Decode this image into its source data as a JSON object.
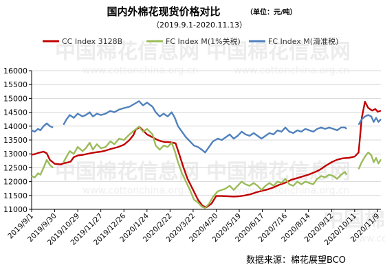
{
  "chart_data": {
    "type": "line",
    "title": "国内外棉花现货价格对比",
    "unit_note": "（单位：元/吨）",
    "subtitle": "（2019.9.1-2020.11.13）",
    "source": "数据来源：棉花展望BCO",
    "watermark": "中国棉花信息网",
    "watermark_url": "www.cottonchina.org.cn",
    "legend_position": "top",
    "grid": true,
    "xlabel": "",
    "ylabel": "",
    "x_range": [
      "2019-09-01",
      "2020-11-13"
    ],
    "ylim": [
      11000,
      16000
    ],
    "y_ticks": [
      11000,
      11500,
      12000,
      12500,
      13000,
      13500,
      14000,
      14500,
      15000,
      15500,
      16000
    ],
    "x_ticks": [
      "2019/9/1",
      "2019/9/30",
      "2019/10/29",
      "2019/11/27",
      "2019/12/26",
      "2020/1/24",
      "2020/2/22",
      "2020/3/22",
      "2020/4/20",
      "2020/5/19",
      "2020/6/17",
      "2020/7/16",
      "2020/8/14",
      "2020/9/12",
      "2020/10/11",
      "2020/11/9"
    ],
    "series": [
      {
        "name": "CC Index 3128B",
        "color": "#c00000",
        "points": [
          [
            "2019-09-01",
            12970
          ],
          [
            "2019-09-05",
            12990
          ],
          [
            "2019-09-10",
            13040
          ],
          [
            "2019-09-16",
            13080
          ],
          [
            "2019-09-20",
            13020
          ],
          [
            "2019-09-24",
            12780
          ],
          [
            "2019-09-30",
            12640
          ],
          [
            "2019-10-08",
            12620
          ],
          [
            "2019-10-10",
            12650
          ],
          [
            "2019-10-15",
            12680
          ],
          [
            "2019-10-20",
            12720
          ],
          [
            "2019-10-24",
            12880
          ],
          [
            "2019-10-29",
            12940
          ],
          [
            "2019-11-05",
            12970
          ],
          [
            "2019-11-12",
            13010
          ],
          [
            "2019-11-19",
            13050
          ],
          [
            "2019-11-27",
            13080
          ],
          [
            "2019-12-03",
            13120
          ],
          [
            "2019-12-10",
            13180
          ],
          [
            "2019-12-18",
            13240
          ],
          [
            "2019-12-26",
            13330
          ],
          [
            "2020-01-02",
            13500
          ],
          [
            "2020-01-07",
            13680
          ],
          [
            "2020-01-10",
            13880
          ],
          [
            "2020-01-15",
            13960
          ],
          [
            "2020-01-20",
            13820
          ],
          [
            "2020-01-24",
            13700
          ],
          [
            "2020-01-31",
            13600
          ],
          [
            "2020-02-05",
            13520
          ],
          [
            "2020-02-10",
            13460
          ],
          [
            "2020-02-15",
            13430
          ],
          [
            "2020-02-22",
            13420
          ],
          [
            "2020-02-29",
            13380
          ],
          [
            "2020-03-05",
            12950
          ],
          [
            "2020-03-10",
            12500
          ],
          [
            "2020-03-15",
            12100
          ],
          [
            "2020-03-22",
            11700
          ],
          [
            "2020-03-28",
            11350
          ],
          [
            "2020-04-03",
            11120
          ],
          [
            "2020-04-08",
            11080
          ],
          [
            "2020-04-14",
            11200
          ],
          [
            "2020-04-20",
            11480
          ],
          [
            "2020-04-27",
            11480
          ],
          [
            "2020-05-05",
            11470
          ],
          [
            "2020-05-12",
            11460
          ],
          [
            "2020-05-19",
            11470
          ],
          [
            "2020-05-26",
            11500
          ],
          [
            "2020-06-03",
            11550
          ],
          [
            "2020-06-10",
            11620
          ],
          [
            "2020-06-17",
            11670
          ],
          [
            "2020-06-24",
            11720
          ],
          [
            "2020-07-01",
            11790
          ],
          [
            "2020-07-08",
            11880
          ],
          [
            "2020-07-16",
            11960
          ],
          [
            "2020-07-23",
            12060
          ],
          [
            "2020-07-30",
            12120
          ],
          [
            "2020-08-06",
            12180
          ],
          [
            "2020-08-14",
            12250
          ],
          [
            "2020-08-21",
            12330
          ],
          [
            "2020-08-28",
            12420
          ],
          [
            "2020-09-04",
            12560
          ],
          [
            "2020-09-12",
            12700
          ],
          [
            "2020-09-19",
            12790
          ],
          [
            "2020-09-26",
            12840
          ],
          [
            "2020-10-04",
            12860
          ],
          [
            "2020-10-11",
            12900
          ],
          [
            "2020-10-16",
            13050
          ],
          [
            "2020-10-20",
            14300
          ],
          [
            "2020-10-24",
            14880
          ],
          [
            "2020-10-28",
            14660
          ],
          [
            "2020-11-02",
            14560
          ],
          [
            "2020-11-06",
            14620
          ],
          [
            "2020-11-09",
            14520
          ],
          [
            "2020-11-13",
            14560
          ]
        ]
      },
      {
        "name": "FC Index M(1%关税)",
        "color": "#9bbb59",
        "points": [
          [
            "2019-09-01",
            12200
          ],
          [
            "2019-09-05",
            12150
          ],
          [
            "2019-09-09",
            12300
          ],
          [
            "2019-09-12",
            12250
          ],
          [
            "2019-09-16",
            12500
          ],
          [
            "2019-09-20",
            12780
          ],
          [
            "2019-09-24",
            12600
          ],
          [
            "2019-09-28",
            12500
          ],
          [
            "2019-10-11",
            12700
          ],
          [
            "2019-10-15",
            12900
          ],
          [
            "2019-10-19",
            13100
          ],
          [
            "2019-10-24",
            13000
          ],
          [
            "2019-10-29",
            13250
          ],
          [
            "2019-11-04",
            13100
          ],
          [
            "2019-11-08",
            13200
          ],
          [
            "2019-11-13",
            13400
          ],
          [
            "2019-11-17",
            13150
          ],
          [
            "2019-11-22",
            13350
          ],
          [
            "2019-11-27",
            13200
          ],
          [
            "2019-12-03",
            13250
          ],
          [
            "2019-12-09",
            13450
          ],
          [
            "2019-12-14",
            13350
          ],
          [
            "2019-12-20",
            13550
          ],
          [
            "2019-12-26",
            13500
          ],
          [
            "2020-01-02",
            13700
          ],
          [
            "2020-01-08",
            13850
          ],
          [
            "2020-01-14",
            13980
          ],
          [
            "2020-01-19",
            13800
          ],
          [
            "2020-01-24",
            13900
          ],
          [
            "2020-01-31",
            13700
          ],
          [
            "2020-02-04",
            13300
          ],
          [
            "2020-02-09",
            13150
          ],
          [
            "2020-02-14",
            13300
          ],
          [
            "2020-02-19",
            13250
          ],
          [
            "2020-02-24",
            13400
          ],
          [
            "2020-02-28",
            13100
          ],
          [
            "2020-03-03",
            12700
          ],
          [
            "2020-03-08",
            12300
          ],
          [
            "2020-03-13",
            12000
          ],
          [
            "2020-03-18",
            11700
          ],
          [
            "2020-03-23",
            11350
          ],
          [
            "2020-03-28",
            11250
          ],
          [
            "2020-04-02",
            11100
          ],
          [
            "2020-04-06",
            11050
          ],
          [
            "2020-04-11",
            11200
          ],
          [
            "2020-04-16",
            11450
          ],
          [
            "2020-04-22",
            11650
          ],
          [
            "2020-04-27",
            11700
          ],
          [
            "2020-05-02",
            11750
          ],
          [
            "2020-05-07",
            11850
          ],
          [
            "2020-05-12",
            11700
          ],
          [
            "2020-05-17",
            11850
          ],
          [
            "2020-05-22",
            12000
          ],
          [
            "2020-05-27",
            11900
          ],
          [
            "2020-06-01",
            11850
          ],
          [
            "2020-06-06",
            11950
          ],
          [
            "2020-06-11",
            11850
          ],
          [
            "2020-06-16",
            11700
          ],
          [
            "2020-06-21",
            11850
          ],
          [
            "2020-06-26",
            11950
          ],
          [
            "2020-07-01",
            11850
          ],
          [
            "2020-07-06",
            12000
          ],
          [
            "2020-07-11",
            11950
          ],
          [
            "2020-07-16",
            12100
          ],
          [
            "2020-07-21",
            11900
          ],
          [
            "2020-07-26",
            11850
          ],
          [
            "2020-07-31",
            12000
          ],
          [
            "2020-08-05",
            11900
          ],
          [
            "2020-08-10",
            12000
          ],
          [
            "2020-08-15",
            11950
          ],
          [
            "2020-08-20",
            11900
          ],
          [
            "2020-08-25",
            12100
          ],
          [
            "2020-08-30",
            12200
          ],
          [
            "2020-09-04",
            12150
          ],
          [
            "2020-09-09",
            12250
          ],
          [
            "2020-09-14",
            12200
          ],
          [
            "2020-09-19",
            12100
          ],
          [
            "2020-09-24",
            12250
          ],
          [
            "2020-09-29",
            12350
          ],
          [
            "2020-10-01",
            12250
          ],
          [
            "2020-10-16",
            12450
          ],
          [
            "2020-10-20",
            12700
          ],
          [
            "2020-10-24",
            12900
          ],
          [
            "2020-10-28",
            13050
          ],
          [
            "2020-11-01",
            12950
          ],
          [
            "2020-11-04",
            12700
          ],
          [
            "2020-11-07",
            12850
          ],
          [
            "2020-11-10",
            12650
          ],
          [
            "2020-11-13",
            12800
          ]
        ]
      },
      {
        "name": "FC Index M(滑准税)",
        "color": "#4f81bd",
        "points": [
          [
            "2019-09-01",
            13850
          ],
          [
            "2019-09-05",
            13800
          ],
          [
            "2019-09-09",
            13900
          ],
          [
            "2019-09-12",
            13850
          ],
          [
            "2019-09-16",
            14000
          ],
          [
            "2019-09-20",
            14100
          ],
          [
            "2019-09-24",
            14000
          ],
          [
            "2019-09-28",
            13950
          ],
          [
            "2019-10-11",
            14050
          ],
          [
            "2019-10-15",
            14250
          ],
          [
            "2019-10-19",
            14400
          ],
          [
            "2019-10-24",
            14300
          ],
          [
            "2019-10-29",
            14450
          ],
          [
            "2019-11-04",
            14350
          ],
          [
            "2019-11-08",
            14400
          ],
          [
            "2019-11-13",
            14500
          ],
          [
            "2019-11-17",
            14350
          ],
          [
            "2019-11-22",
            14450
          ],
          [
            "2019-11-27",
            14400
          ],
          [
            "2019-12-03",
            14450
          ],
          [
            "2019-12-09",
            14550
          ],
          [
            "2019-12-14",
            14500
          ],
          [
            "2019-12-20",
            14600
          ],
          [
            "2019-12-26",
            14650
          ],
          [
            "2020-01-02",
            14700
          ],
          [
            "2020-01-08",
            14800
          ],
          [
            "2020-01-14",
            14900
          ],
          [
            "2020-01-19",
            14750
          ],
          [
            "2020-01-24",
            14850
          ],
          [
            "2020-01-31",
            14700
          ],
          [
            "2020-02-04",
            14500
          ],
          [
            "2020-02-09",
            14350
          ],
          [
            "2020-02-14",
            14450
          ],
          [
            "2020-02-19",
            14350
          ],
          [
            "2020-02-24",
            14500
          ],
          [
            "2020-02-28",
            14300
          ],
          [
            "2020-03-03",
            14000
          ],
          [
            "2020-03-08",
            13800
          ],
          [
            "2020-03-13",
            13600
          ],
          [
            "2020-03-18",
            13450
          ],
          [
            "2020-03-23",
            13300
          ],
          [
            "2020-03-28",
            13250
          ],
          [
            "2020-04-02",
            13150
          ],
          [
            "2020-04-06",
            13050
          ],
          [
            "2020-04-11",
            13250
          ],
          [
            "2020-04-16",
            13450
          ],
          [
            "2020-04-22",
            13550
          ],
          [
            "2020-04-27",
            13500
          ],
          [
            "2020-05-02",
            13600
          ],
          [
            "2020-05-07",
            13700
          ],
          [
            "2020-05-12",
            13550
          ],
          [
            "2020-05-17",
            13650
          ],
          [
            "2020-05-22",
            13800
          ],
          [
            "2020-05-27",
            13700
          ],
          [
            "2020-06-01",
            13650
          ],
          [
            "2020-06-06",
            13750
          ],
          [
            "2020-06-11",
            13650
          ],
          [
            "2020-06-16",
            13550
          ],
          [
            "2020-06-21",
            13650
          ],
          [
            "2020-06-26",
            13750
          ],
          [
            "2020-07-01",
            13700
          ],
          [
            "2020-07-06",
            13850
          ],
          [
            "2020-07-11",
            13800
          ],
          [
            "2020-07-16",
            13950
          ],
          [
            "2020-07-21",
            13800
          ],
          [
            "2020-07-26",
            13750
          ],
          [
            "2020-07-31",
            13850
          ],
          [
            "2020-08-05",
            13800
          ],
          [
            "2020-08-10",
            13900
          ],
          [
            "2020-08-15",
            13850
          ],
          [
            "2020-08-20",
            13800
          ],
          [
            "2020-08-25",
            13900
          ],
          [
            "2020-08-30",
            13950
          ],
          [
            "2020-09-04",
            13900
          ],
          [
            "2020-09-09",
            13950
          ],
          [
            "2020-09-14",
            13900
          ],
          [
            "2020-09-19",
            13850
          ],
          [
            "2020-09-24",
            13950
          ],
          [
            "2020-09-29",
            13950
          ],
          [
            "2020-10-01",
            13900
          ],
          [
            "2020-10-16",
            14050
          ],
          [
            "2020-10-20",
            14250
          ],
          [
            "2020-10-24",
            14350
          ],
          [
            "2020-10-28",
            14400
          ],
          [
            "2020-11-01",
            14350
          ],
          [
            "2020-11-04",
            14150
          ],
          [
            "2020-11-07",
            14300
          ],
          [
            "2020-11-10",
            14150
          ],
          [
            "2020-11-13",
            14250
          ]
        ]
      }
    ]
  }
}
